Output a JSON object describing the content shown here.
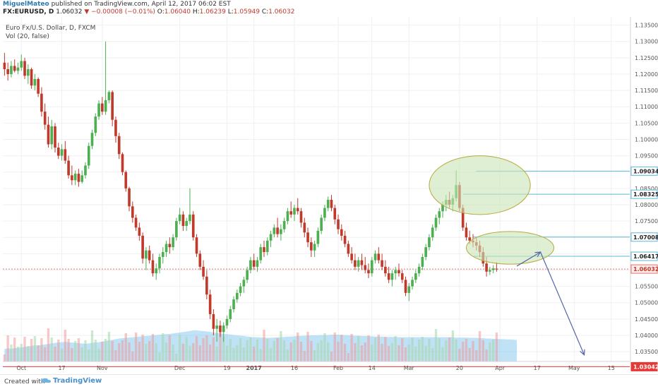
{
  "header": {
    "author": "MiguelMateo",
    "published_text": "published on TradingView.com, April 12, 2017 06:02 EST",
    "symbol": "FX:EURUSD, D",
    "last": "1.06032",
    "change_arrow": "▼",
    "change": "−0.00008 (−0.01%)",
    "o_label": "O:",
    "o_value": "1.06040",
    "h_label": "H:",
    "h_value": "1.06239",
    "l_label": "L:",
    "l_value": "1.05949",
    "c_label": "C:",
    "c_value": "1.06032"
  },
  "legend": {
    "line1": "Euro Fx/U.S. Dollar, D, FXCM",
    "line2": "Vol (20, false)"
  },
  "footer": {
    "created_with": "Created with",
    "brand": "TradingView"
  },
  "colors": {
    "up": "#4caf50",
    "down": "#c0392b",
    "hline": "#5bb8d6",
    "hline_red": "#e53935",
    "volume_area": "#8ccbf0",
    "circle_fill": "#c9e4b6",
    "circle_stroke": "#b9a93a",
    "arrow": "#5566aa"
  },
  "chart_data": {
    "type": "candlestick",
    "title": "Euro Fx/U.S. Dollar, D, FXCM",
    "y_axis_ticks": [
      "1.13500",
      "1.13000",
      "1.12500",
      "1.12000",
      "1.11500",
      "1.11000",
      "1.10500",
      "1.10000",
      "1.09500",
      "1.09000",
      "1.08500",
      "1.08000",
      "1.07500",
      "1.07000",
      "1.06500",
      "1.06000",
      "1.05500",
      "1.05000",
      "1.04500",
      "1.04000",
      "1.03500"
    ],
    "ylim": [
      1.032,
      1.1375
    ],
    "x_axis_ticks": [
      {
        "label": "Oct",
        "i": 5
      },
      {
        "label": "17",
        "i": 17
      },
      {
        "label": "Nov",
        "i": 29
      },
      {
        "label": "Dec",
        "i": 52
      },
      {
        "label": "19",
        "i": 66
      },
      {
        "label": "2017",
        "i": 74
      },
      {
        "label": "16",
        "i": 86
      },
      {
        "label": "Feb",
        "i": 99
      },
      {
        "label": "14",
        "i": 109
      },
      {
        "label": "Mar",
        "i": 120
      },
      {
        "label": "20",
        "i": 135
      },
      {
        "label": "Apr",
        "i": 147
      },
      {
        "label": "17",
        "i": 158
      },
      {
        "label": "May",
        "i": 169
      },
      {
        "label": "15",
        "i": 180
      }
    ],
    "x_count": 186,
    "price_lines": [
      {
        "value": "1.09034",
        "y": 1.0903,
        "color": "hline"
      },
      {
        "value": "1.08325",
        "y": 1.0832,
        "color": "hline"
      },
      {
        "value": "1.07008",
        "y": 1.0701,
        "color": "hline"
      },
      {
        "value": "1.06417",
        "y": 1.0642,
        "color": "hline"
      },
      {
        "value": "1.06032",
        "y": 1.0603,
        "color": "current"
      },
      {
        "value": "1.03042",
        "y": 1.0304,
        "color": "hline_red"
      }
    ],
    "annotations": {
      "circles": [
        {
          "i": 141,
          "y": 1.086,
          "rx": 15,
          "ry": 9
        },
        {
          "i": 150,
          "y": 1.0668,
          "rx": 13,
          "ry": 5
        }
      ],
      "arrow_path": [
        {
          "i": 152,
          "y": 1.0612
        },
        {
          "i": 159,
          "y": 1.0655
        },
        {
          "i": 172,
          "y": 1.034
        }
      ]
    },
    "volume_area": [
      0.4,
      0.42,
      0.41,
      0.43,
      0.44,
      0.45,
      0.47,
      0.48,
      0.5,
      0.52,
      0.51,
      0.53,
      0.55,
      0.56,
      0.58,
      0.6,
      0.61,
      0.62,
      0.63,
      0.62,
      0.61,
      0.6,
      0.59,
      0.58,
      0.57,
      0.58,
      0.6,
      0.61,
      0.62,
      0.64,
      0.66,
      0.68,
      0.7,
      0.72,
      0.74,
      0.75,
      0.76,
      0.77,
      0.78,
      0.79,
      0.8,
      0.81,
      0.82,
      0.83,
      0.84,
      0.85,
      0.86,
      0.87,
      0.88,
      0.89,
      0.9,
      0.92,
      0.93,
      0.95,
      0.96,
      0.98,
      1.0,
      1.0,
      0.99,
      0.98,
      0.97,
      0.95,
      0.93,
      0.92,
      0.9,
      0.89,
      0.88,
      0.87,
      0.85,
      0.84,
      0.83,
      0.82,
      0.8,
      0.79,
      0.78,
      0.78,
      0.77,
      0.77,
      0.76,
      0.76,
      0.77,
      0.78,
      0.78,
      0.79,
      0.8,
      0.8,
      0.81,
      0.82,
      0.82,
      0.83,
      0.83,
      0.84,
      0.84,
      0.84,
      0.85,
      0.85,
      0.85,
      0.86,
      0.86,
      0.86,
      0.85,
      0.85,
      0.84,
      0.84,
      0.83,
      0.83,
      0.82,
      0.82,
      0.81,
      0.81,
      0.8,
      0.8,
      0.8,
      0.79,
      0.79,
      0.79,
      0.79,
      0.78,
      0.78,
      0.78,
      0.78,
      0.78,
      0.78,
      0.78,
      0.78,
      0.78,
      0.78,
      0.78,
      0.78,
      0.78,
      0.78,
      0.78,
      0.78,
      0.78,
      0.77,
      0.77,
      0.77,
      0.77,
      0.76,
      0.76,
      0.76,
      0.75,
      0.75,
      0.74,
      0.74,
      0.73,
      0.73,
      0.72,
      0.72,
      0.71,
      0.71,
      0.7,
      0.69
    ],
    "candles": [
      [
        1.1235,
        1.1265,
        1.1195,
        1.1215
      ],
      [
        1.1215,
        1.1235,
        1.118,
        1.12
      ],
      [
        1.12,
        1.124,
        1.119,
        1.1225
      ],
      [
        1.1225,
        1.1245,
        1.1205,
        1.121
      ],
      [
        1.121,
        1.1235,
        1.12,
        1.122
      ],
      [
        1.122,
        1.126,
        1.121,
        1.124
      ],
      [
        1.124,
        1.125,
        1.1185,
        1.1195
      ],
      [
        1.1195,
        1.123,
        1.117,
        1.1215
      ],
      [
        1.1215,
        1.122,
        1.1155,
        1.1165
      ],
      [
        1.1165,
        1.12,
        1.115,
        1.1185
      ],
      [
        1.1185,
        1.119,
        1.113,
        1.114
      ],
      [
        1.114,
        1.116,
        1.107,
        1.1085
      ],
      [
        1.1085,
        1.111,
        1.103,
        1.1045
      ],
      [
        1.1045,
        1.107,
        1.0975,
        1.0985
      ],
      [
        1.0985,
        1.106,
        1.097,
        1.104
      ],
      [
        1.104,
        1.105,
        1.096,
        1.0975
      ],
      [
        1.0975,
        1.099,
        1.094,
        1.095
      ],
      [
        1.095,
        1.0985,
        1.0935,
        1.097
      ],
      [
        1.097,
        1.0995,
        1.0925,
        1.0935
      ],
      [
        1.0935,
        1.095,
        1.088,
        1.089
      ],
      [
        1.089,
        1.092,
        1.086,
        1.0875
      ],
      [
        1.0875,
        1.0905,
        1.086,
        1.0895
      ],
      [
        1.0895,
        1.091,
        1.0855,
        1.087
      ],
      [
        1.087,
        1.0905,
        1.0865,
        1.089
      ],
      [
        1.089,
        1.093,
        1.088,
        1.092
      ],
      [
        1.092,
        1.099,
        1.091,
        1.098
      ],
      [
        1.098,
        1.103,
        1.097,
        1.102
      ],
      [
        1.102,
        1.108,
        1.101,
        1.107
      ],
      [
        1.107,
        1.112,
        1.106,
        1.111
      ],
      [
        1.111,
        1.113,
        1.1075,
        1.1085
      ],
      [
        1.1085,
        1.13,
        1.1075,
        1.112
      ],
      [
        1.112,
        1.115,
        1.111,
        1.1145
      ],
      [
        1.1145,
        1.115,
        1.104,
        1.106
      ],
      [
        1.106,
        1.107,
        1.099,
        1.101
      ],
      [
        1.101,
        1.102,
        1.094,
        1.0955
      ],
      [
        1.0955,
        1.096,
        1.089,
        1.09
      ],
      [
        1.09,
        1.0905,
        1.084,
        1.085
      ],
      [
        1.085,
        1.0855,
        1.078,
        1.0795
      ],
      [
        1.0795,
        1.081,
        1.0745,
        1.076
      ],
      [
        1.076,
        1.077,
        1.072,
        1.073
      ],
      [
        1.073,
        1.0745,
        1.069,
        1.0705
      ],
      [
        1.0705,
        1.0715,
        1.062,
        1.0635
      ],
      [
        1.0635,
        1.067,
        1.06,
        1.066
      ],
      [
        1.066,
        1.0675,
        1.062,
        1.063
      ],
      [
        1.063,
        1.065,
        1.058,
        1.059
      ],
      [
        1.059,
        1.062,
        1.057,
        1.0605
      ],
      [
        1.0605,
        1.065,
        1.059,
        1.064
      ],
      [
        1.064,
        1.067,
        1.062,
        1.0655
      ],
      [
        1.0655,
        1.069,
        1.064,
        1.068
      ],
      [
        1.068,
        1.07,
        1.065,
        1.067
      ],
      [
        1.067,
        1.071,
        1.066,
        1.07
      ],
      [
        1.07,
        1.076,
        1.069,
        1.075
      ],
      [
        1.075,
        1.079,
        1.074,
        1.077
      ],
      [
        1.077,
        1.078,
        1.072,
        1.0735
      ],
      [
        1.0735,
        1.076,
        1.072,
        1.075
      ],
      [
        1.075,
        1.085,
        1.074,
        1.077
      ],
      [
        1.077,
        1.078,
        1.069,
        1.07
      ],
      [
        1.07,
        1.071,
        1.064,
        1.065
      ],
      [
        1.065,
        1.066,
        1.06,
        1.061
      ],
      [
        1.061,
        1.063,
        1.057,
        1.058
      ],
      [
        1.058,
        1.06,
        1.051,
        1.0525
      ],
      [
        1.0525,
        1.054,
        1.045,
        1.0465
      ],
      [
        1.0465,
        1.048,
        1.04,
        1.042
      ],
      [
        1.042,
        1.045,
        1.038,
        1.043
      ],
      [
        1.043,
        1.0445,
        1.0395,
        1.041
      ],
      [
        1.041,
        1.044,
        1.038,
        1.043
      ],
      [
        1.043,
        1.046,
        1.042,
        1.045
      ],
      [
        1.045,
        1.049,
        1.044,
        1.048
      ],
      [
        1.048,
        1.052,
        1.047,
        1.051
      ],
      [
        1.051,
        1.054,
        1.05,
        1.053
      ],
      [
        1.053,
        1.056,
        1.052,
        1.055
      ],
      [
        1.055,
        1.058,
        1.053,
        1.057
      ],
      [
        1.057,
        1.061,
        1.056,
        1.06
      ],
      [
        1.06,
        1.064,
        1.059,
        1.063
      ],
      [
        1.063,
        1.065,
        1.06,
        1.061
      ],
      [
        1.061,
        1.064,
        1.0595,
        1.063
      ],
      [
        1.063,
        1.068,
        1.062,
        1.067
      ],
      [
        1.067,
        1.069,
        1.064,
        1.0655
      ],
      [
        1.0655,
        1.07,
        1.0645,
        1.069
      ],
      [
        1.069,
        1.072,
        1.067,
        1.071
      ],
      [
        1.071,
        1.074,
        1.07,
        1.073
      ],
      [
        1.073,
        1.076,
        1.07,
        1.071
      ],
      [
        1.071,
        1.074,
        1.069,
        1.0725
      ],
      [
        1.0725,
        1.076,
        1.0715,
        1.075
      ],
      [
        1.075,
        1.079,
        1.074,
        1.078
      ],
      [
        1.078,
        1.081,
        1.076,
        1.077
      ],
      [
        1.077,
        1.08,
        1.075,
        1.079
      ],
      [
        1.079,
        1.082,
        1.077,
        1.078
      ],
      [
        1.078,
        1.079,
        1.073,
        1.0745
      ],
      [
        1.0745,
        1.076,
        1.07,
        1.0715
      ],
      [
        1.0715,
        1.073,
        1.067,
        1.0685
      ],
      [
        1.0685,
        1.07,
        1.064,
        1.066
      ],
      [
        1.066,
        1.069,
        1.064,
        1.068
      ],
      [
        1.068,
        1.073,
        1.067,
        1.072
      ],
      [
        1.072,
        1.077,
        1.071,
        1.076
      ],
      [
        1.076,
        1.08,
        1.075,
        1.079
      ],
      [
        1.079,
        1.0825,
        1.078,
        1.0815
      ],
      [
        1.0815,
        1.083,
        1.078,
        1.079
      ],
      [
        1.079,
        1.08,
        1.074,
        1.0755
      ],
      [
        1.0755,
        1.077,
        1.071,
        1.0725
      ],
      [
        1.0725,
        1.074,
        1.069,
        1.0705
      ],
      [
        1.0705,
        1.072,
        1.067,
        1.068
      ],
      [
        1.068,
        1.069,
        1.064,
        1.065
      ],
      [
        1.065,
        1.067,
        1.062,
        1.063
      ],
      [
        1.063,
        1.065,
        1.06,
        1.061
      ],
      [
        1.061,
        1.064,
        1.0595,
        1.063
      ],
      [
        1.063,
        1.065,
        1.06,
        1.0615
      ],
      [
        1.0615,
        1.064,
        1.059,
        1.06
      ],
      [
        1.06,
        1.062,
        1.0575,
        1.059
      ],
      [
        1.059,
        1.064,
        1.058,
        1.063
      ],
      [
        1.063,
        1.066,
        1.062,
        1.065
      ],
      [
        1.065,
        1.067,
        1.062,
        1.063
      ],
      [
        1.063,
        1.065,
        1.06,
        1.061
      ],
      [
        1.061,
        1.063,
        1.058,
        1.059
      ],
      [
        1.059,
        1.061,
        1.056,
        1.057
      ],
      [
        1.057,
        1.06,
        1.055,
        1.059
      ],
      [
        1.059,
        1.061,
        1.057,
        1.06
      ],
      [
        1.06,
        1.062,
        1.058,
        1.059
      ],
      [
        1.059,
        1.06,
        1.056,
        1.057
      ],
      [
        1.057,
        1.058,
        1.052,
        1.053
      ],
      [
        1.053,
        1.056,
        1.0505,
        1.055
      ],
      [
        1.055,
        1.058,
        1.054,
        1.057
      ],
      [
        1.057,
        1.06,
        1.056,
        1.059
      ],
      [
        1.059,
        1.062,
        1.058,
        1.061
      ],
      [
        1.061,
        1.065,
        1.06,
        1.064
      ],
      [
        1.064,
        1.068,
        1.063,
        1.067
      ],
      [
        1.067,
        1.071,
        1.066,
        1.07
      ],
      [
        1.07,
        1.074,
        1.069,
        1.073
      ],
      [
        1.073,
        1.077,
        1.072,
        1.076
      ],
      [
        1.076,
        1.079,
        1.074,
        1.078
      ],
      [
        1.078,
        1.081,
        1.076,
        1.08
      ],
      [
        1.08,
        1.083,
        1.078,
        1.0815
      ],
      [
        1.0815,
        1.084,
        1.079,
        1.08
      ],
      [
        1.08,
        1.083,
        1.078,
        1.082
      ],
      [
        1.082,
        1.0905,
        1.081,
        1.086
      ],
      [
        1.086,
        1.087,
        1.078,
        1.079
      ],
      [
        1.079,
        1.08,
        1.072,
        1.073
      ],
      [
        1.073,
        1.0745,
        1.069,
        1.07
      ],
      [
        1.07,
        1.072,
        1.068,
        1.069
      ],
      [
        1.069,
        1.071,
        1.067,
        1.0685
      ],
      [
        1.0685,
        1.07,
        1.066,
        1.0675
      ],
      [
        1.0675,
        1.069,
        1.064,
        1.0655
      ],
      [
        1.0655,
        1.067,
        1.061,
        1.062
      ],
      [
        1.062,
        1.064,
        1.058,
        1.0595
      ],
      [
        1.0595,
        1.061,
        1.0585,
        1.06
      ],
      [
        1.06,
        1.0615,
        1.059,
        1.0605
      ],
      [
        1.0604,
        1.0624,
        1.0595,
        1.0603
      ]
    ]
  }
}
